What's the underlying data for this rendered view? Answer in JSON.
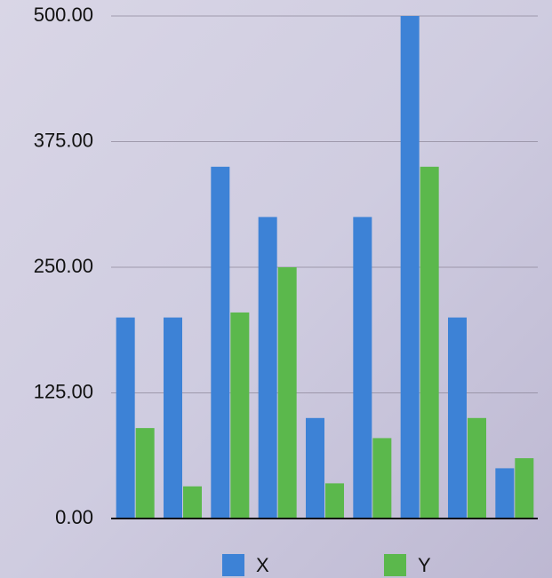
{
  "chart_data": {
    "type": "bar",
    "categories": [
      null,
      null,
      null,
      null,
      null,
      null,
      null,
      null,
      null
    ],
    "series": [
      {
        "name": "X",
        "color": "#3d82d6",
        "values": [
          200,
          200,
          350,
          300,
          100,
          300,
          500,
          200,
          50
        ]
      },
      {
        "name": "Y",
        "color": "#5bb84c",
        "values": [
          90,
          32,
          205,
          250,
          35,
          80,
          350,
          100,
          60
        ]
      }
    ],
    "ylim": [
      0,
      500
    ],
    "yticks": [
      {
        "value": 0,
        "label": "0.00"
      },
      {
        "value": 125,
        "label": "125.00"
      },
      {
        "value": 250,
        "label": "250.00"
      },
      {
        "value": 375,
        "label": "375.00"
      },
      {
        "value": 500,
        "label": "500.00"
      }
    ],
    "grid": true,
    "legend": "bottom"
  }
}
